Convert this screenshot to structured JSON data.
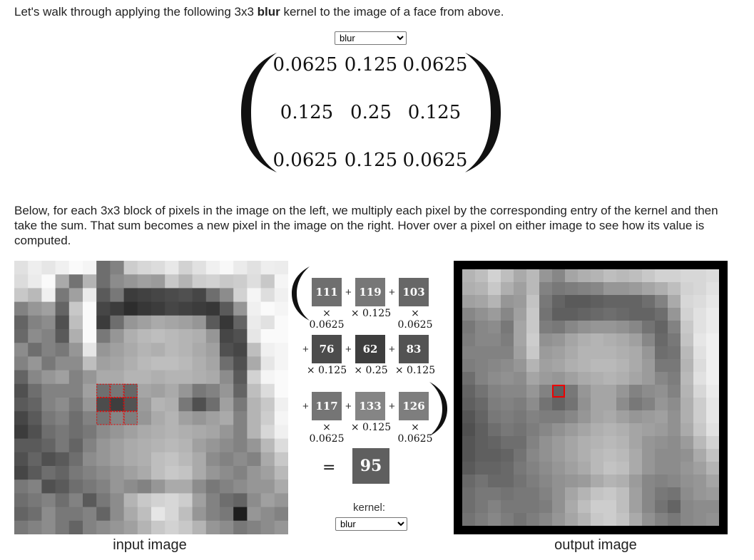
{
  "intro": {
    "before": "Let's walk through applying the following 3x3 ",
    "bold": "blur",
    "after": " kernel to the image of a face from above."
  },
  "kernel_select_top": {
    "selected": "blur",
    "options": [
      "blur"
    ]
  },
  "kernel_matrix": {
    "rows": [
      [
        "0.0625",
        "0.125",
        "0.0625"
      ],
      [
        "0.125",
        "0.25",
        "0.125"
      ],
      [
        "0.0625",
        "0.125",
        "0.0625"
      ]
    ]
  },
  "explanation": "Below, for each 3x3 block of pixels in the image on the left, we multiply each pixel by the corresponding entry of the kernel and then take the sum. That sum becomes a new pixel in the image on the right. Hover over a pixel on either image to see how its value is computed.",
  "computation": {
    "pixels": [
      [
        111,
        119,
        103
      ],
      [
        76,
        62,
        83
      ],
      [
        117,
        133,
        126
      ]
    ],
    "weights": [
      [
        "× 0.0625",
        "× 0.125",
        "× 0.0625"
      ],
      [
        "× 0.125",
        "× 0.25",
        "× 0.125"
      ],
      [
        "× 0.0625",
        "× 0.125",
        "× 0.0625"
      ]
    ],
    "plus": "+",
    "equals": "=",
    "result": 95
  },
  "kernel_label": "kernel:",
  "kernel_select_bottom": {
    "selected": "blur",
    "options": [
      "blur"
    ]
  },
  "captions": {
    "input": "input image",
    "output": "output image"
  },
  "input_image": {
    "grid_size": 20,
    "highlighted_block": {
      "row": 9,
      "col": 6,
      "size": 3
    },
    "pixels": [
      [
        225,
        238,
        230,
        240,
        250,
        245,
        110,
        130,
        205,
        215,
        220,
        232,
        210,
        225,
        240,
        248,
        235,
        225,
        238,
        236
      ],
      [
        220,
        235,
        250,
        170,
        115,
        180,
        110,
        140,
        150,
        160,
        155,
        200,
        180,
        205,
        210,
        200,
        205,
        222,
        200,
        245
      ],
      [
        200,
        185,
        240,
        120,
        160,
        235,
        90,
        120,
        60,
        65,
        70,
        75,
        80,
        70,
        110,
        140,
        210,
        245,
        222,
        240
      ],
      [
        130,
        150,
        160,
        100,
        200,
        250,
        70,
        60,
        45,
        55,
        60,
        70,
        65,
        60,
        55,
        90,
        150,
        240,
        250,
        245
      ],
      [
        100,
        130,
        140,
        80,
        190,
        250,
        60,
        110,
        150,
        160,
        170,
        165,
        160,
        150,
        90,
        55,
        100,
        235,
        225,
        250
      ],
      [
        105,
        140,
        130,
        90,
        175,
        250,
        120,
        150,
        175,
        185,
        190,
        185,
        180,
        175,
        150,
        70,
        80,
        230,
        250,
        250
      ],
      [
        140,
        110,
        130,
        120,
        150,
        230,
        150,
        160,
        170,
        180,
        175,
        185,
        180,
        170,
        160,
        80,
        70,
        190,
        240,
        245
      ],
      [
        130,
        150,
        120,
        140,
        140,
        190,
        160,
        165,
        175,
        185,
        190,
        190,
        185,
        175,
        165,
        110,
        80,
        170,
        230,
        245
      ],
      [
        100,
        135,
        150,
        160,
        130,
        150,
        170,
        170,
        180,
        180,
        175,
        180,
        180,
        175,
        170,
        140,
        90,
        210,
        245,
        250
      ],
      [
        80,
        110,
        130,
        130,
        130,
        160,
        111,
        119,
        103,
        165,
        160,
        170,
        150,
        120,
        130,
        150,
        100,
        190,
        220,
        250
      ],
      [
        90,
        100,
        130,
        140,
        120,
        150,
        76,
        62,
        83,
        155,
        180,
        175,
        120,
        80,
        110,
        160,
        120,
        180,
        200,
        240
      ],
      [
        70,
        90,
        120,
        130,
        110,
        130,
        117,
        133,
        126,
        150,
        170,
        180,
        160,
        150,
        160,
        170,
        130,
        180,
        205,
        245
      ],
      [
        60,
        80,
        110,
        120,
        110,
        120,
        140,
        150,
        160,
        170,
        175,
        180,
        175,
        170,
        165,
        150,
        130,
        180,
        215,
        240
      ],
      [
        90,
        90,
        100,
        120,
        100,
        130,
        150,
        160,
        170,
        175,
        180,
        185,
        180,
        160,
        150,
        140,
        130,
        150,
        185,
        220
      ],
      [
        80,
        100,
        80,
        90,
        110,
        140,
        150,
        160,
        170,
        175,
        190,
        195,
        185,
        170,
        140,
        130,
        140,
        130,
        170,
        200
      ],
      [
        70,
        90,
        110,
        100,
        120,
        130,
        140,
        150,
        160,
        170,
        190,
        200,
        195,
        170,
        150,
        140,
        130,
        150,
        160,
        185
      ],
      [
        120,
        130,
        80,
        90,
        110,
        120,
        130,
        150,
        140,
        130,
        150,
        170,
        170,
        140,
        120,
        130,
        140,
        150,
        150,
        170
      ],
      [
        110,
        120,
        130,
        110,
        130,
        90,
        120,
        140,
        180,
        200,
        210,
        215,
        205,
        160,
        130,
        110,
        100,
        140,
        160,
        150
      ],
      [
        100,
        110,
        140,
        120,
        120,
        130,
        100,
        140,
        170,
        190,
        230,
        215,
        190,
        150,
        130,
        120,
        30,
        150,
        140,
        130
      ],
      [
        120,
        130,
        140,
        120,
        100,
        130,
        140,
        150,
        160,
        180,
        200,
        210,
        200,
        180,
        150,
        140,
        120,
        130,
        140,
        150
      ]
    ]
  },
  "output_image": {
    "grid_size": 20,
    "highlighted_pixel": {
      "row": 9,
      "col": 7
    },
    "pixels": [
      [
        180,
        190,
        210,
        190,
        170,
        185,
        150,
        135,
        165,
        175,
        180,
        190,
        185,
        190,
        200,
        210,
        210,
        215,
        215,
        220
      ],
      [
        175,
        180,
        200,
        175,
        160,
        185,
        130,
        120,
        125,
        130,
        135,
        150,
        150,
        155,
        165,
        175,
        190,
        210,
        215,
        225
      ],
      [
        160,
        165,
        180,
        150,
        155,
        195,
        120,
        100,
        90,
        90,
        95,
        100,
        100,
        100,
        110,
        130,
        170,
        215,
        220,
        230
      ],
      [
        135,
        145,
        155,
        135,
        160,
        200,
        115,
        95,
        95,
        100,
        105,
        110,
        105,
        100,
        100,
        110,
        150,
        210,
        225,
        235
      ],
      [
        120,
        135,
        140,
        120,
        165,
        200,
        125,
        120,
        135,
        145,
        150,
        150,
        145,
        135,
        115,
        100,
        130,
        200,
        225,
        235
      ],
      [
        125,
        135,
        135,
        125,
        165,
        205,
        145,
        150,
        165,
        175,
        180,
        175,
        170,
        160,
        135,
        105,
        120,
        195,
        230,
        240
      ],
      [
        130,
        130,
        130,
        130,
        160,
        200,
        155,
        160,
        170,
        180,
        180,
        180,
        175,
        170,
        150,
        110,
        115,
        185,
        225,
        240
      ],
      [
        125,
        130,
        135,
        140,
        150,
        180,
        160,
        165,
        175,
        180,
        185,
        185,
        180,
        170,
        155,
        120,
        120,
        180,
        220,
        240
      ],
      [
        110,
        130,
        140,
        145,
        140,
        165,
        155,
        150,
        160,
        170,
        175,
        180,
        175,
        165,
        155,
        135,
        125,
        185,
        225,
        240
      ],
      [
        100,
        115,
        130,
        135,
        135,
        150,
        130,
        95,
        120,
        150,
        165,
        165,
        150,
        130,
        140,
        145,
        130,
        180,
        215,
        235
      ],
      [
        95,
        105,
        125,
        130,
        125,
        140,
        115,
        100,
        115,
        145,
        165,
        165,
        140,
        120,
        130,
        150,
        140,
        175,
        205,
        230
      ],
      [
        85,
        100,
        120,
        125,
        120,
        130,
        125,
        125,
        135,
        150,
        165,
        170,
        160,
        150,
        155,
        160,
        145,
        175,
        205,
        230
      ],
      [
        80,
        95,
        110,
        120,
        115,
        125,
        135,
        145,
        155,
        165,
        175,
        180,
        175,
        165,
        160,
        155,
        145,
        170,
        200,
        225
      ],
      [
        85,
        95,
        100,
        110,
        110,
        130,
        145,
        155,
        165,
        175,
        180,
        185,
        180,
        165,
        150,
        145,
        140,
        155,
        185,
        210
      ],
      [
        85,
        95,
        95,
        100,
        115,
        135,
        145,
        155,
        165,
        175,
        185,
        190,
        185,
        170,
        150,
        140,
        140,
        145,
        170,
        195
      ],
      [
        90,
        100,
        100,
        105,
        120,
        130,
        140,
        150,
        160,
        170,
        185,
        195,
        190,
        170,
        150,
        140,
        140,
        150,
        160,
        180
      ],
      [
        105,
        115,
        105,
        105,
        115,
        125,
        135,
        145,
        150,
        155,
        170,
        180,
        175,
        155,
        135,
        130,
        135,
        145,
        150,
        165
      ],
      [
        110,
        120,
        120,
        115,
        120,
        120,
        130,
        145,
        165,
        180,
        195,
        200,
        190,
        160,
        135,
        120,
        115,
        140,
        150,
        155
      ],
      [
        110,
        120,
        130,
        120,
        120,
        120,
        125,
        145,
        170,
        190,
        205,
        205,
        190,
        160,
        135,
        115,
        100,
        135,
        140,
        140
      ],
      [
        115,
        125,
        135,
        125,
        115,
        125,
        135,
        150,
        165,
        180,
        200,
        205,
        195,
        170,
        145,
        130,
        120,
        135,
        140,
        145
      ]
    ]
  }
}
